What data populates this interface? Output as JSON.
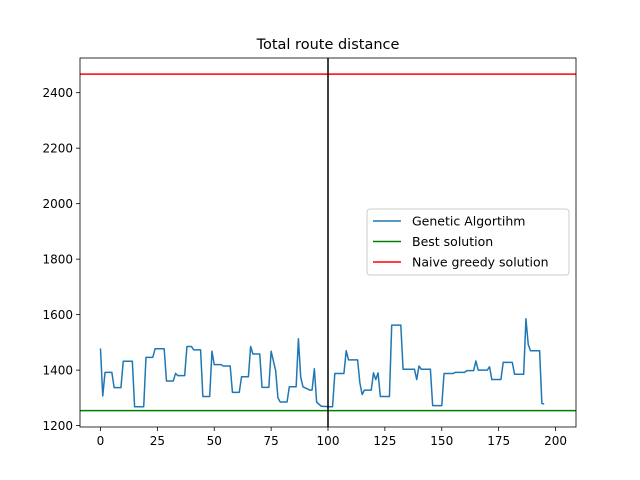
{
  "chart_data": {
    "type": "line",
    "title": "Total route distance",
    "xlabel": "",
    "ylabel": "",
    "xlim": [
      -9,
      209
    ],
    "ylim": [
      1195,
      2525
    ],
    "x_ticks": [
      0,
      25,
      50,
      75,
      100,
      125,
      150,
      175,
      200
    ],
    "y_ticks": [
      1200,
      1400,
      1600,
      1800,
      2000,
      2200,
      2400
    ],
    "legend": {
      "placement": "center-right",
      "entries": [
        "Genetic Algortihm",
        "Best solution",
        "Naive greedy solution"
      ]
    },
    "series": [
      {
        "name": "Genetic Algortihm",
        "color": "#1f77b4",
        "points": [
          [
            0,
            1478
          ],
          [
            1,
            1307
          ],
          [
            2,
            1392
          ],
          [
            5,
            1392
          ],
          [
            6,
            1337
          ],
          [
            9,
            1337
          ],
          [
            10,
            1432
          ],
          [
            14,
            1432
          ],
          [
            15,
            1268
          ],
          [
            19,
            1268
          ],
          [
            20,
            1446
          ],
          [
            23,
            1446
          ],
          [
            24,
            1477
          ],
          [
            28,
            1477
          ],
          [
            29,
            1361
          ],
          [
            32,
            1361
          ],
          [
            33,
            1388
          ],
          [
            34,
            1380
          ],
          [
            37,
            1380
          ],
          [
            38,
            1485
          ],
          [
            40,
            1485
          ],
          [
            41,
            1473
          ],
          [
            44,
            1473
          ],
          [
            45,
            1305
          ],
          [
            48,
            1305
          ],
          [
            49,
            1468
          ],
          [
            50,
            1420
          ],
          [
            53,
            1420
          ],
          [
            54,
            1415
          ],
          [
            57,
            1415
          ],
          [
            58,
            1320
          ],
          [
            61,
            1320
          ],
          [
            62,
            1376
          ],
          [
            65,
            1376
          ],
          [
            66,
            1485
          ],
          [
            67,
            1458
          ],
          [
            70,
            1458
          ],
          [
            71,
            1338
          ],
          [
            74,
            1338
          ],
          [
            75,
            1468
          ],
          [
            77,
            1398
          ],
          [
            78,
            1300
          ],
          [
            79,
            1285
          ],
          [
            82,
            1285
          ],
          [
            83,
            1340
          ],
          [
            86,
            1340
          ],
          [
            87,
            1513
          ],
          [
            88,
            1375
          ],
          [
            89,
            1340
          ],
          [
            92,
            1328
          ],
          [
            93,
            1328
          ],
          [
            94,
            1405
          ],
          [
            95,
            1285
          ],
          [
            97,
            1270
          ],
          [
            101,
            1268
          ],
          [
            102,
            1268
          ],
          [
            103,
            1388
          ],
          [
            107,
            1388
          ],
          [
            108,
            1470
          ],
          [
            109,
            1437
          ],
          [
            113,
            1437
          ],
          [
            114,
            1355
          ],
          [
            115,
            1312
          ],
          [
            116,
            1328
          ],
          [
            119,
            1328
          ],
          [
            120,
            1390
          ],
          [
            121,
            1366
          ],
          [
            122,
            1390
          ],
          [
            123,
            1305
          ],
          [
            127,
            1305
          ],
          [
            128,
            1562
          ],
          [
            132,
            1562
          ],
          [
            133,
            1403
          ],
          [
            138,
            1403
          ],
          [
            139,
            1366
          ],
          [
            140,
            1415
          ],
          [
            141,
            1403
          ],
          [
            145,
            1403
          ],
          [
            146,
            1272
          ],
          [
            150,
            1272
          ],
          [
            151,
            1388
          ],
          [
            155,
            1388
          ],
          [
            156,
            1392
          ],
          [
            160,
            1392
          ],
          [
            161,
            1398
          ],
          [
            164,
            1398
          ],
          [
            165,
            1433
          ],
          [
            166,
            1400
          ],
          [
            170,
            1400
          ],
          [
            171,
            1412
          ],
          [
            172,
            1366
          ],
          [
            176,
            1366
          ],
          [
            177,
            1428
          ],
          [
            181,
            1428
          ],
          [
            182,
            1385
          ],
          [
            186,
            1385
          ],
          [
            187,
            1585
          ],
          [
            188,
            1493
          ],
          [
            189,
            1470
          ],
          [
            193,
            1470
          ],
          [
            194,
            1280
          ],
          [
            195,
            1278
          ]
        ]
      },
      {
        "name": "Best solution",
        "color": "#008000",
        "y": 1254
      },
      {
        "name": "Naive greedy solution",
        "color": "#ff0000",
        "y": 2467
      }
    ],
    "vertical_line": {
      "x": 100,
      "color": "#000000"
    }
  }
}
